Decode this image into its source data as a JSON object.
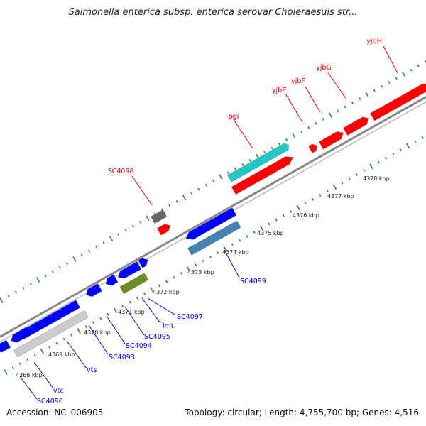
{
  "title": "Salmonella enterica subsp. enterica serovar Choleraesuis str...",
  "accession": "Accession: NC_006905",
  "summary": "Topology: circular; Length: 4,755,700 bp; Genes: 4,516",
  "colors": {
    "top_gene": "#ff0000",
    "bottom_gene": "#0000ff",
    "backbone": "#888888",
    "tick": "#2e8b2e",
    "cyan": "#22c8c8",
    "steelblue": "#4682b4",
    "olive": "#6b8e23",
    "gray_gene": "#666666",
    "lightgray_gene": "#cccccc"
  },
  "scale_labels": [
    "4368 kbp",
    "4369 kbp",
    "4370 kbp",
    "4371 kbp",
    "4372 kbp",
    "4373 kbp",
    "4374 kbp",
    "4375 kbp",
    "4376 kbp",
    "4377 kbp",
    "4378 kbp"
  ],
  "genes_top": [
    "yjbH",
    "yjbG",
    "yjbF",
    "yjbE",
    "pgi",
    "SC4098"
  ],
  "genes_bottom": [
    "SC4099",
    "SC4097",
    "lmt",
    "SC4095",
    "SC4094",
    "SC4093",
    "vts",
    "vtc",
    "SC4090"
  ]
}
